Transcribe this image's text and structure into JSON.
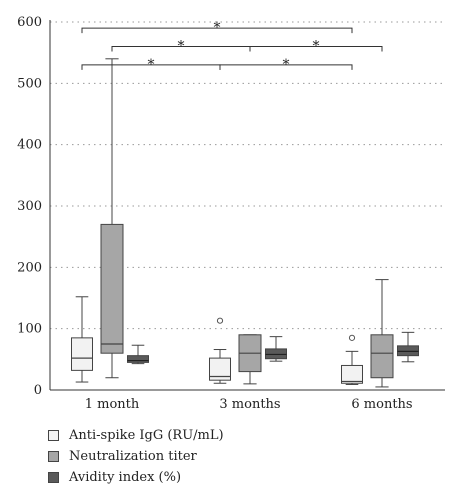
{
  "chart_data": {
    "type": "boxplot",
    "categories": [
      "1 month",
      "3 months",
      "6 months"
    ],
    "ylim": [
      0,
      600
    ],
    "yticks": [
      0,
      100,
      200,
      300,
      400,
      500,
      600
    ],
    "grid": true,
    "legend_position": "bottom",
    "series": [
      {
        "name": "Anti-spike IgG (RU/mL)",
        "color": "#f2f2f2",
        "boxes": [
          {
            "whisker_low": 13,
            "q1": 32,
            "median": 52,
            "q3": 85,
            "whisker_high": 152,
            "outliers": []
          },
          {
            "whisker_low": 11,
            "q1": 16,
            "median": 22,
            "q3": 52,
            "whisker_high": 66,
            "outliers": [
              113
            ]
          },
          {
            "whisker_low": 9,
            "q1": 11,
            "median": 14,
            "q3": 40,
            "whisker_high": 63,
            "outliers": [
              85
            ]
          }
        ]
      },
      {
        "name": "Neutralization titer",
        "color": "#a6a6a6",
        "boxes": [
          {
            "whisker_low": 20,
            "q1": 60,
            "median": 75,
            "q3": 270,
            "whisker_high": 540,
            "outliers": []
          },
          {
            "whisker_low": 10,
            "q1": 30,
            "median": 60,
            "q3": 90,
            "whisker_high": 90,
            "outliers": []
          },
          {
            "whisker_low": 5,
            "q1": 20,
            "median": 60,
            "q3": 90,
            "whisker_high": 180,
            "outliers": []
          }
        ]
      },
      {
        "name": "Avidity index (%)",
        "color": "#5a5a5a",
        "boxes": [
          {
            "whisker_low": 43,
            "q1": 45,
            "median": 48,
            "q3": 56,
            "whisker_high": 73,
            "outliers": []
          },
          {
            "whisker_low": 47,
            "q1": 51,
            "median": 58,
            "q3": 67,
            "whisker_high": 87,
            "outliers": []
          },
          {
            "whisker_low": 46,
            "q1": 56,
            "median": 63,
            "q3": 72,
            "whisker_high": 94,
            "outliers": []
          }
        ]
      }
    ],
    "significance": [
      {
        "from": [
          0,
          0
        ],
        "to": [
          1,
          0
        ],
        "label": "*",
        "level": 530
      },
      {
        "from": [
          0,
          1
        ],
        "to": [
          1,
          1
        ],
        "label": "*",
        "level": 560
      },
      {
        "from": [
          0,
          0
        ],
        "to": [
          2,
          0
        ],
        "label": "*",
        "level": 590
      },
      {
        "from": [
          1,
          0
        ],
        "to": [
          2,
          0
        ],
        "label": "*",
        "level": 530
      },
      {
        "from": [
          1,
          1
        ],
        "to": [
          2,
          1
        ],
        "label": "*",
        "level": 560
      }
    ]
  }
}
